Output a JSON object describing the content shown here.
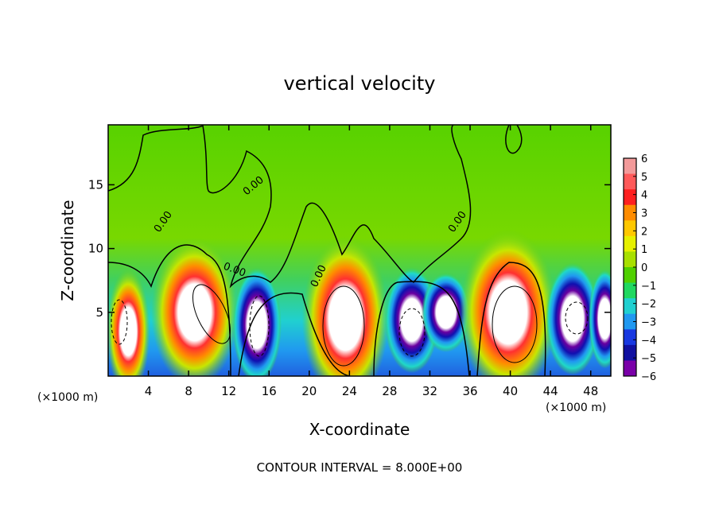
{
  "chart_data": {
    "type": "heatmap",
    "title": "vertical velocity",
    "xlabel": "X-coordinate",
    "ylabel": "Z-coordinate",
    "x_unit_label": "(×1000 m)",
    "x_unit_label_right": "(×1000 m)",
    "footer": "CONTOUR INTERVAL = 8.000E+00",
    "xlim": [
      0,
      50
    ],
    "ylim": [
      0,
      19.7
    ],
    "x_ticks": [
      4,
      8,
      12,
      16,
      20,
      24,
      28,
      32,
      36,
      40,
      44,
      48
    ],
    "y_ticks": [
      5,
      10,
      15
    ],
    "contour_labels": [
      "0.00",
      "0.00",
      "0.00",
      "0.00",
      "0.00"
    ],
    "colorbar": {
      "ticks": [
        "6",
        "5",
        "4",
        "3",
        "2",
        "1",
        "0",
        "−1",
        "−2",
        "−3",
        "−4",
        "−5",
        "−6"
      ],
      "colors": [
        "#f29a9a",
        "#ff5a5a",
        "#ff2020",
        "#ff8c00",
        "#ffc800",
        "#e6f000",
        "#a8e000",
        "#50d000",
        "#20d860",
        "#20d0d0",
        "#2098f0",
        "#1838e0",
        "#1010a0",
        "#7a00a8"
      ],
      "range": [
        -6,
        6
      ]
    },
    "features": [
      {
        "kind": "updraft",
        "x": 2,
        "z": 3.5,
        "rx": 1.6,
        "rz": 3.8,
        "amp": 1
      },
      {
        "kind": "updraft",
        "x": 8.6,
        "z": 5.0,
        "rx": 3.2,
        "rz": 4.5,
        "amp": 1
      },
      {
        "kind": "downdraft",
        "x": 14.8,
        "z": 4.0,
        "rx": 1.8,
        "rz": 3.5,
        "amp": -1
      },
      {
        "kind": "updraft",
        "x": 23.6,
        "z": 4.5,
        "rx": 3.2,
        "rz": 5.0,
        "amp": 1
      },
      {
        "kind": "downdraft",
        "x": 30.2,
        "z": 4.4,
        "rx": 2.0,
        "rz": 3.2,
        "amp": -1
      },
      {
        "kind": "downdraft",
        "x": 33.6,
        "z": 5.0,
        "rx": 1.8,
        "rz": 2.4,
        "amp": -1
      },
      {
        "kind": "updraft",
        "x": 39.8,
        "z": 5.0,
        "rx": 3.6,
        "rz": 5.0,
        "amp": 1
      },
      {
        "kind": "downdraft",
        "x": 46.2,
        "z": 4.5,
        "rx": 2.0,
        "rz": 3.4,
        "amp": -1
      },
      {
        "kind": "downdraft",
        "x": 49.4,
        "z": 4.5,
        "rx": 1.2,
        "rz": 3.0,
        "amp": -1
      }
    ]
  }
}
